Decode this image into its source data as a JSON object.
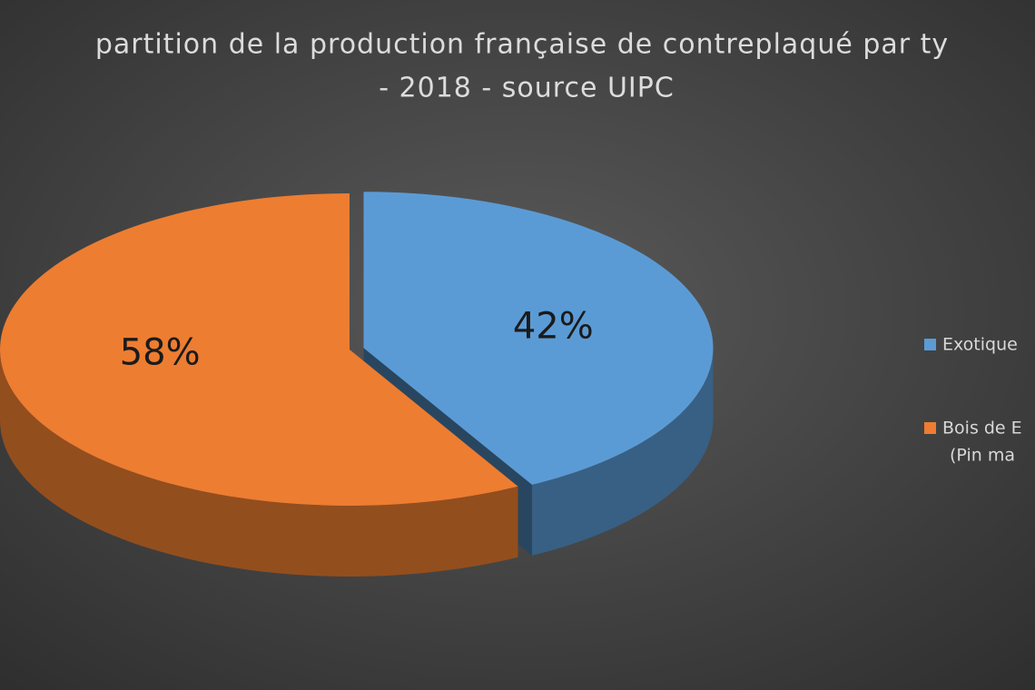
{
  "chart_data": {
    "type": "pie3d",
    "title": [
      "partition de la production française de contreplaqué par ty",
      "- 2018 - source UIPC"
    ],
    "categories": [
      [
        "Exotique"
      ],
      [
        "Bois de E",
        "(Pin ma"
      ]
    ],
    "values": [
      42,
      58
    ],
    "value_labels": [
      "42%",
      "58%"
    ],
    "colors": [
      "#5b9bd5",
      "#ed7d31"
    ],
    "exploded": [
      true,
      false
    ]
  }
}
